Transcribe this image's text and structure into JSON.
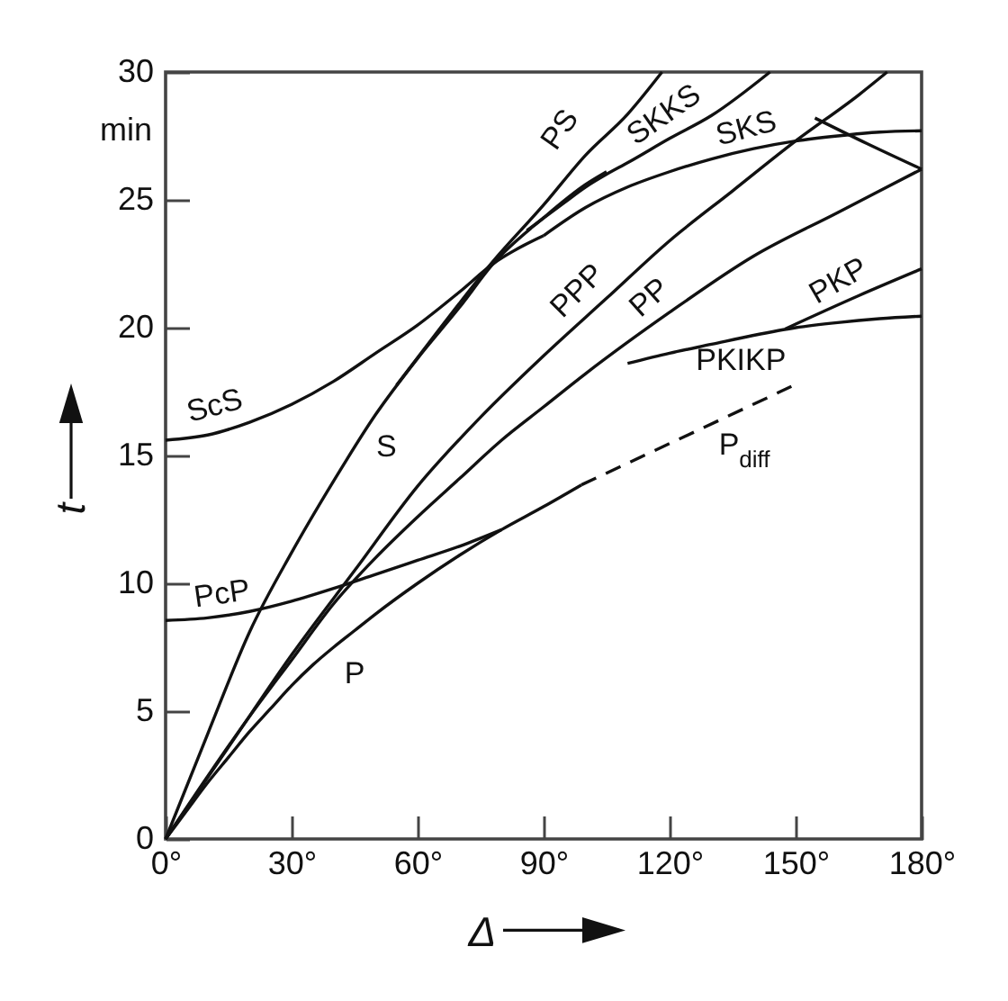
{
  "chart_data": {
    "type": "line",
    "xlabel": "Δ",
    "ylabel": "t",
    "annotations": [
      "min"
    ],
    "xlim": [
      0,
      180
    ],
    "ylim": [
      0,
      30
    ],
    "xticks": [
      {
        "value": 0,
        "label": "0°"
      },
      {
        "value": 30,
        "label": "30°"
      },
      {
        "value": 60,
        "label": "60°"
      },
      {
        "value": 90,
        "label": "90°"
      },
      {
        "value": 120,
        "label": "120°"
      },
      {
        "value": 150,
        "label": "150°"
      },
      {
        "value": 180,
        "label": "180°"
      }
    ],
    "yticks": [
      0,
      5,
      10,
      15,
      20,
      25,
      30
    ],
    "grid": false,
    "series": [
      {
        "name": "P",
        "color": "#111111",
        "x": [
          0,
          5,
          10,
          15,
          20,
          25,
          30,
          35,
          40,
          45,
          50,
          60,
          70,
          80,
          90,
          99
        ],
        "values": [
          0,
          1.1,
          2.2,
          3.2,
          4.2,
          5.1,
          6.0,
          6.8,
          7.5,
          8.15,
          8.8,
          10.0,
          11.1,
          12.1,
          13.0,
          13.85
        ]
      },
      {
        "name": "P$_{diff}$",
        "color": "#111111",
        "line_style": "dashed",
        "x": [
          99,
          149
        ],
        "values": [
          13.85,
          17.7
        ]
      },
      {
        "name": "PcP",
        "color": "#111111",
        "x": [
          0,
          10,
          20,
          30,
          40,
          50,
          60,
          70,
          80
        ],
        "values": [
          8.55,
          8.65,
          8.9,
          9.3,
          9.8,
          10.35,
          10.9,
          11.45,
          12.1
        ]
      },
      {
        "name": "PP",
        "color": "#111111",
        "x": [
          0,
          10,
          20,
          30,
          40,
          50,
          60,
          70,
          80,
          90,
          100,
          120,
          140,
          160,
          180
        ],
        "values": [
          0,
          2.45,
          4.8,
          7.0,
          9.2,
          11.0,
          12.6,
          14.1,
          15.6,
          16.9,
          18.2,
          20.6,
          22.8,
          24.5,
          26.2
        ]
      },
      {
        "name": "PPP",
        "color": "#111111",
        "x": [
          0,
          15,
          30,
          45,
          60,
          75,
          90,
          105,
          120,
          135,
          150,
          165,
          171.8
        ],
        "values": [
          0,
          3.6,
          7.2,
          10.5,
          13.8,
          16.5,
          18.9,
          21.15,
          23.4,
          25.35,
          27.3,
          29.1,
          30.0
        ]
      },
      {
        "name": "S",
        "color": "#111111",
        "x": [
          0,
          10,
          20,
          30,
          40,
          50,
          60,
          70,
          78,
          90,
          100,
          105
        ],
        "values": [
          0,
          4.1,
          8.1,
          11.2,
          14.0,
          16.6,
          18.8,
          20.8,
          22.5,
          24.3,
          25.6,
          26.1
        ]
      },
      {
        "name": "ScS",
        "color": "#111111",
        "x": [
          0,
          10,
          20,
          30,
          40,
          50,
          60,
          70,
          78,
          90
        ],
        "values": [
          15.6,
          15.8,
          16.3,
          17.0,
          17.9,
          19.0,
          20.1,
          21.4,
          22.5,
          23.6
        ]
      },
      {
        "name": "PS",
        "color": "#111111",
        "x": [
          55,
          65,
          78,
          90,
          100,
          110,
          118.2
        ],
        "values": [
          17.75,
          19.9,
          22.6,
          24.8,
          26.75,
          28.35,
          30.0
        ]
      },
      {
        "name": "SKS",
        "color": "#111111",
        "x": [
          90,
          100,
          110,
          120,
          130,
          140,
          150,
          160,
          170,
          180
        ],
        "values": [
          23.6,
          24.7,
          25.5,
          26.1,
          26.6,
          27.0,
          27.3,
          27.5,
          27.65,
          27.7
        ]
      },
      {
        "name": "SKKS",
        "color": "#111111",
        "x": [
          86,
          95,
          100,
          105,
          110,
          120,
          130,
          143.9
        ],
        "values": [
          23.8,
          24.9,
          25.5,
          26.0,
          26.45,
          27.4,
          28.3,
          30.0
        ]
      },
      {
        "name": "PKIKP",
        "color": "#111111",
        "x": [
          110,
          120,
          130,
          140,
          150,
          160,
          170,
          180
        ],
        "values": [
          18.6,
          19.0,
          19.35,
          19.7,
          20.0,
          20.2,
          20.35,
          20.45
        ]
      },
      {
        "name": "PKP",
        "color": "#111111",
        "x": [
          147.5,
          165,
          180
        ],
        "values": [
          19.95,
          21.25,
          22.3
        ]
      },
      {
        "color": "#111111",
        "x": [
          154.6,
          167,
          180
        ],
        "values": [
          28.2,
          27.2,
          26.2
        ]
      }
    ]
  }
}
